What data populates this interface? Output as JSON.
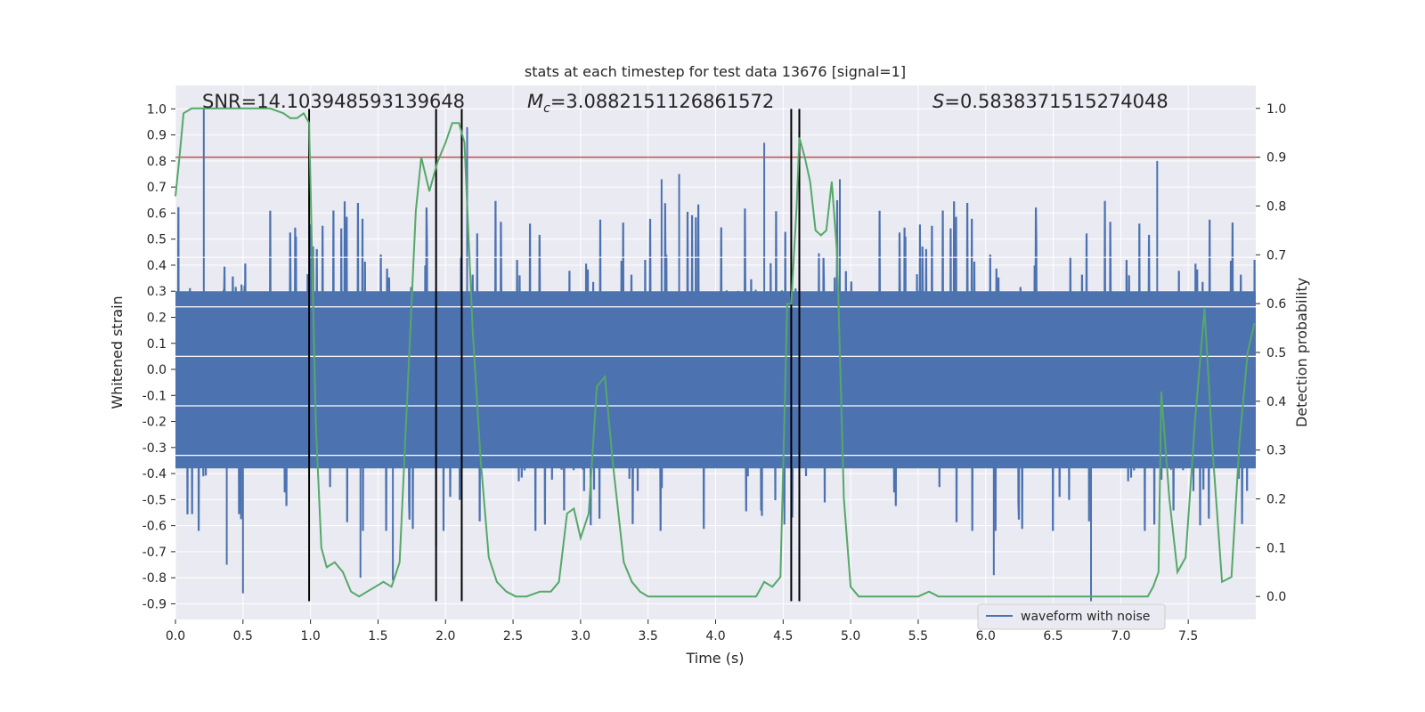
{
  "chart_data": {
    "type": "line",
    "title": "stats at each timestep for test data 13676 [signal=1]",
    "xlabel": "Time (s)",
    "ylabel": "Whitened strain",
    "y2label": "Detection probability",
    "xlim": [
      0.0,
      8.0
    ],
    "ylim": [
      -0.96,
      1.09
    ],
    "y2lim": [
      -0.047,
      1.047
    ],
    "x_ticks": [
      "0.0",
      "0.5",
      "1.0",
      "1.5",
      "2.0",
      "2.5",
      "3.0",
      "3.5",
      "4.0",
      "4.5",
      "5.0",
      "5.5",
      "6.0",
      "6.5",
      "7.0",
      "7.5"
    ],
    "x_tick_values": [
      0.0,
      0.5,
      1.0,
      1.5,
      2.0,
      2.5,
      3.0,
      3.5,
      4.0,
      4.5,
      5.0,
      5.5,
      6.0,
      6.5,
      7.0,
      7.5
    ],
    "y_ticks": [
      "1.0",
      "0.9",
      "0.8",
      "0.7",
      "0.6",
      "0.5",
      "0.4",
      "0.3",
      "0.2",
      "0.1",
      "0.0",
      "-0.1",
      "-0.2",
      "-0.3",
      "-0.4",
      "-0.5",
      "-0.6",
      "-0.7",
      "-0.8",
      "-0.9"
    ],
    "y_tick_values": [
      1.0,
      0.9,
      0.8,
      0.7,
      0.6,
      0.5,
      0.4,
      0.3,
      0.2,
      0.1,
      0.0,
      -0.1,
      -0.2,
      -0.3,
      -0.4,
      -0.5,
      -0.6,
      -0.7,
      -0.8,
      -0.9
    ],
    "y2_ticks": [
      "1.0",
      "0.9",
      "0.8",
      "0.7",
      "0.6",
      "0.5",
      "0.4",
      "0.3",
      "0.2",
      "0.1",
      "0.0"
    ],
    "y2_tick_values": [
      1.0,
      0.9,
      0.8,
      0.7,
      0.6,
      0.5,
      0.4,
      0.3,
      0.2,
      0.1,
      0.0
    ],
    "annotations": {
      "snr": "SNR=14.103948593139648",
      "mc_symbol": "M",
      "mc_sub": "c",
      "mc_value": "=3.0882151126861572",
      "s_symbol": "S",
      "s_value": "=0.5838371515274048"
    },
    "threshold": {
      "axis": "right",
      "value": 0.9,
      "color": "#c44e52"
    },
    "vertical_lines": {
      "x": [
        0.99,
        1.93,
        2.12,
        4.56,
        4.62
      ],
      "y_range": [
        -0.89,
        1.0
      ],
      "color": "#000000"
    },
    "legend": {
      "label": "waveform with noise",
      "placement": "lower-right"
    },
    "grid": true,
    "colors": {
      "waveform": "#4c72b0",
      "probability": "#55a868",
      "background": "#eaeaf2",
      "grid": "#ffffff"
    },
    "series": [
      {
        "name": "waveform with noise",
        "type": "dense-noise-line",
        "sample_rate_hz": 2048,
        "typical_envelope": [
          -0.5,
          0.6
        ],
        "peaks": [
          {
            "x": 0.21,
            "y": 1.0
          },
          {
            "x": 0.29,
            "y": 0.25
          },
          {
            "x": 0.5,
            "y": -0.86
          },
          {
            "x": 0.38,
            "y": -0.75
          },
          {
            "x": 1.37,
            "y": -0.8
          },
          {
            "x": 1.61,
            "y": -0.81
          },
          {
            "x": 1.93,
            "y": -0.68
          },
          {
            "x": 2.16,
            "y": 0.93
          },
          {
            "x": 3.6,
            "y": 0.73
          },
          {
            "x": 3.73,
            "y": 0.75
          },
          {
            "x": 4.36,
            "y": 0.87
          },
          {
            "x": 6.06,
            "y": -0.79
          },
          {
            "x": 6.78,
            "y": -0.89
          },
          {
            "x": 7.27,
            "y": 0.8
          },
          {
            "x": 4.92,
            "y": 0.73
          }
        ]
      },
      {
        "name": "",
        "axis": "right",
        "x": [
          0.0,
          0.03,
          0.06,
          0.12,
          0.2,
          0.3,
          0.4,
          0.5,
          0.6,
          0.7,
          0.8,
          0.85,
          0.9,
          0.95,
          0.99,
          1.04,
          1.08,
          1.12,
          1.18,
          1.24,
          1.3,
          1.36,
          1.42,
          1.48,
          1.54,
          1.6,
          1.66,
          1.72,
          1.78,
          1.82,
          1.88,
          1.94,
          2.0,
          2.05,
          2.1,
          2.14,
          2.2,
          2.26,
          2.32,
          2.38,
          2.45,
          2.52,
          2.6,
          2.7,
          2.78,
          2.84,
          2.9,
          2.95,
          3.0,
          3.06,
          3.12,
          3.18,
          3.24,
          3.32,
          3.38,
          3.44,
          3.5,
          3.6,
          3.7,
          3.85,
          4.0,
          4.1,
          4.2,
          4.3,
          4.36,
          4.42,
          4.48,
          4.53,
          4.56,
          4.6,
          4.62,
          4.66,
          4.7,
          4.74,
          4.78,
          4.82,
          4.86,
          4.9,
          4.95,
          5.0,
          5.06,
          5.15,
          5.3,
          5.45,
          5.5,
          5.58,
          5.65,
          5.75,
          5.85,
          6.0,
          6.2,
          6.4,
          6.6,
          6.8,
          7.0,
          7.1,
          7.2,
          7.24,
          7.28,
          7.3,
          7.36,
          7.42,
          7.48,
          7.55,
          7.62,
          7.68,
          7.75,
          7.82,
          7.88,
          7.94,
          7.99
        ],
        "y": [
          0.82,
          0.9,
          0.99,
          1.0,
          1.0,
          1.0,
          1.0,
          1.0,
          1.0,
          1.0,
          0.99,
          0.98,
          0.98,
          0.99,
          0.97,
          0.35,
          0.1,
          0.06,
          0.07,
          0.05,
          0.01,
          0.0,
          0.01,
          0.02,
          0.03,
          0.02,
          0.07,
          0.43,
          0.79,
          0.9,
          0.83,
          0.89,
          0.93,
          0.97,
          0.97,
          0.93,
          0.55,
          0.28,
          0.08,
          0.03,
          0.01,
          0.0,
          0.0,
          0.01,
          0.01,
          0.03,
          0.17,
          0.18,
          0.12,
          0.17,
          0.43,
          0.45,
          0.27,
          0.07,
          0.03,
          0.01,
          0.0,
          0.0,
          0.0,
          0.0,
          0.0,
          0.0,
          0.0,
          0.0,
          0.03,
          0.02,
          0.04,
          0.6,
          0.6,
          0.8,
          0.94,
          0.9,
          0.85,
          0.75,
          0.74,
          0.75,
          0.85,
          0.7,
          0.2,
          0.02,
          0.0,
          0.0,
          0.0,
          0.0,
          0.0,
          0.01,
          0.0,
          0.0,
          0.0,
          0.0,
          0.0,
          0.0,
          0.0,
          0.0,
          0.0,
          0.0,
          0.0,
          0.02,
          0.05,
          0.42,
          0.2,
          0.05,
          0.08,
          0.36,
          0.59,
          0.3,
          0.03,
          0.04,
          0.32,
          0.5,
          0.56
        ]
      }
    ]
  }
}
